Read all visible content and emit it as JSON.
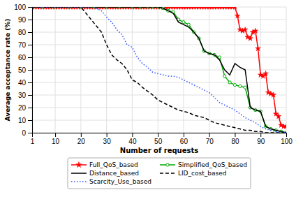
{
  "chart_data": {
    "type": "line",
    "xlabel": "Number of requests",
    "ylabel": "Average acceptance rate (%)",
    "xlim": [
      1,
      100
    ],
    "ylim": [
      0,
      100
    ],
    "xticks": [
      1,
      10,
      20,
      30,
      40,
      50,
      60,
      70,
      80,
      90,
      100
    ],
    "yticks": [
      0,
      10,
      20,
      30,
      40,
      50,
      60,
      70,
      80,
      90,
      100
    ],
    "grid": true,
    "legend": "bottom",
    "series": [
      {
        "name": "Full_QoS_based",
        "color": "#ff0000",
        "marker": "star",
        "line_style": "solid",
        "x": [
          1,
          2,
          3,
          4,
          5,
          6,
          7,
          8,
          9,
          10,
          11,
          12,
          13,
          14,
          15,
          16,
          17,
          18,
          19,
          20,
          21,
          22,
          23,
          24,
          25,
          26,
          27,
          28,
          29,
          30,
          31,
          32,
          33,
          34,
          35,
          36,
          37,
          38,
          39,
          40,
          41,
          42,
          43,
          44,
          45,
          46,
          47,
          48,
          49,
          50,
          51,
          52,
          53,
          54,
          55,
          56,
          57,
          58,
          59,
          60,
          61,
          62,
          63,
          64,
          65,
          66,
          67,
          68,
          69,
          70,
          71,
          72,
          73,
          74,
          75,
          76,
          77,
          78,
          79,
          80,
          81,
          82,
          83,
          84,
          85,
          86,
          87,
          88,
          89,
          90,
          91,
          92,
          93,
          94,
          95,
          96,
          97,
          98,
          99,
          100
        ],
        "values": [
          100,
          100,
          100,
          100,
          100,
          100,
          100,
          100,
          100,
          100,
          100,
          100,
          100,
          100,
          100,
          100,
          100,
          100,
          100,
          100,
          100,
          100,
          100,
          100,
          100,
          100,
          100,
          100,
          100,
          100,
          100,
          100,
          100,
          100,
          100,
          100,
          100,
          100,
          100,
          100,
          100,
          100,
          100,
          100,
          100,
          100,
          100,
          100,
          100,
          100,
          100,
          100,
          100,
          100,
          100,
          100,
          100,
          100,
          100,
          100,
          100,
          100,
          100,
          100,
          100,
          100,
          100,
          100,
          100,
          100,
          100,
          100,
          100,
          100,
          100,
          100,
          100,
          100,
          100,
          100,
          93,
          82,
          81,
          82,
          76,
          75,
          80,
          81,
          67,
          46,
          45,
          47,
          32,
          31,
          30,
          15,
          13,
          6,
          5,
          5
        ]
      },
      {
        "name": "Simplified_QoS_based",
        "color": "#00aa00",
        "marker": "circle",
        "line_style": "solid",
        "x": [
          1,
          5,
          10,
          15,
          20,
          25,
          30,
          35,
          40,
          43,
          46,
          48,
          50,
          52,
          54,
          56,
          58,
          60,
          62,
          64,
          66,
          68,
          70,
          72,
          74,
          76,
          78,
          80,
          82,
          84,
          86,
          88,
          90,
          92,
          94,
          96,
          98,
          100
        ],
        "values": [
          100,
          100,
          100,
          100,
          100,
          100,
          100,
          100,
          100,
          100,
          100,
          100,
          100,
          99,
          97,
          96,
          90,
          88,
          86,
          80,
          75,
          65,
          63,
          62,
          60,
          45,
          40,
          38,
          37,
          36,
          20,
          18,
          17,
          5,
          3,
          2,
          1,
          0
        ]
      },
      {
        "name": "Distance_based",
        "color": "#000000",
        "line_style": "solid",
        "x": [
          1,
          5,
          10,
          15,
          20,
          25,
          30,
          35,
          40,
          43,
          46,
          48,
          50,
          52,
          54,
          56,
          58,
          60,
          62,
          64,
          66,
          68,
          70,
          72,
          74,
          76,
          78,
          80,
          82,
          84,
          86,
          88,
          90,
          92,
          94,
          96,
          98,
          100
        ],
        "values": [
          100,
          100,
          100,
          100,
          100,
          100,
          100,
          100,
          100,
          100,
          100,
          100,
          100,
          99,
          97,
          95,
          88,
          86,
          84,
          80,
          75,
          65,
          63,
          62,
          58,
          50,
          46,
          55,
          52,
          50,
          20,
          18,
          17,
          5,
          3,
          2,
          1,
          0
        ]
      },
      {
        "name": "LID_cost_based",
        "color": "#000000",
        "line_style": "dashed",
        "x": [
          1,
          5,
          10,
          15,
          20,
          22,
          24,
          26,
          28,
          30,
          32,
          34,
          36,
          38,
          40,
          42,
          44,
          46,
          48,
          50,
          52,
          54,
          56,
          58,
          60,
          62,
          64,
          66,
          68,
          70,
          72,
          74,
          76,
          78,
          80,
          82,
          84,
          86,
          88,
          90,
          92,
          94,
          96,
          98,
          100
        ],
        "values": [
          100,
          100,
          100,
          100,
          100,
          95,
          90,
          85,
          80,
          70,
          62,
          58,
          55,
          50,
          42,
          40,
          36,
          33,
          30,
          26,
          24,
          22,
          20,
          18,
          17,
          16,
          14,
          13,
          12,
          10,
          8,
          7,
          6,
          5,
          4,
          3,
          2,
          2,
          1,
          1,
          0,
          0,
          0,
          0,
          0
        ]
      },
      {
        "name": "Scarcity_Use_based",
        "color": "#3355ff",
        "line_style": "dotted",
        "x": [
          1,
          5,
          10,
          15,
          20,
          25,
          28,
          30,
          32,
          34,
          36,
          38,
          40,
          42,
          44,
          46,
          48,
          50,
          52,
          54,
          56,
          58,
          60,
          62,
          64,
          66,
          68,
          70,
          72,
          74,
          76,
          78,
          80,
          82,
          84,
          86,
          88,
          90,
          92,
          94,
          96,
          98,
          100
        ],
        "values": [
          100,
          100,
          100,
          100,
          100,
          100,
          97,
          92,
          88,
          82,
          78,
          70,
          68,
          60,
          55,
          52,
          48,
          47,
          46,
          45,
          45,
          44,
          42,
          40,
          38,
          36,
          34,
          32,
          28,
          24,
          22,
          20,
          18,
          15,
          12,
          10,
          8,
          5,
          3,
          2,
          1,
          0,
          0
        ]
      }
    ]
  }
}
